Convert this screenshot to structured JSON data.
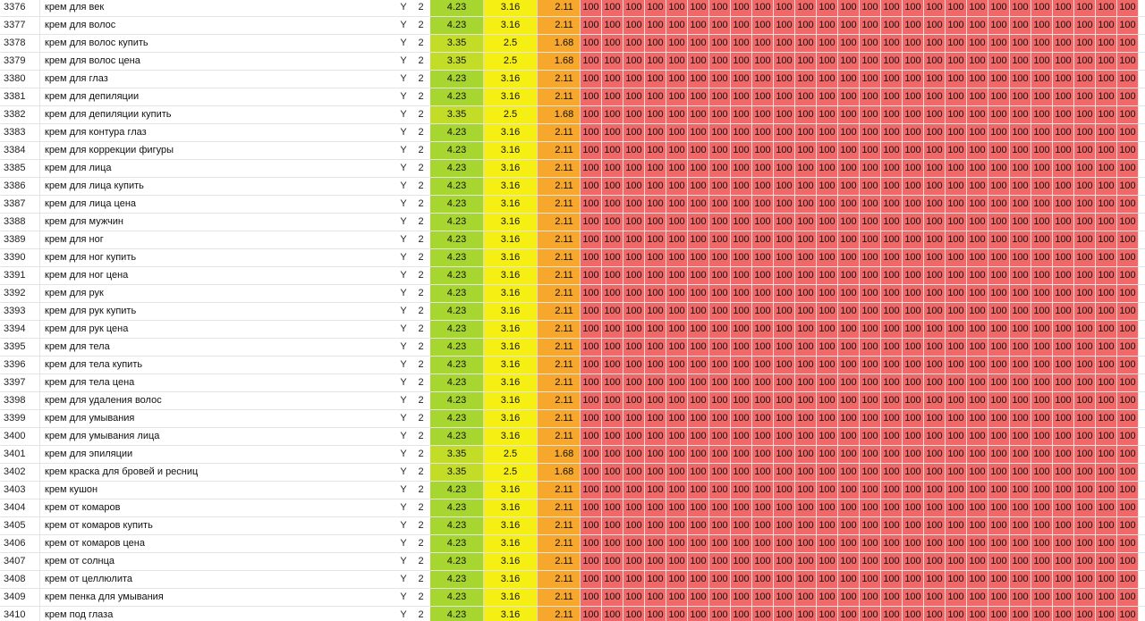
{
  "colors": {
    "green": "#a6d62f",
    "lime": "#c3dc28",
    "yellow": "#f6ef14",
    "orange": "#f7a72b",
    "red": "#f16868"
  },
  "heat_value": "100",
  "heat_columns": 26,
  "rows": [
    {
      "num": "3376",
      "kw": "крем для век",
      "y": "Y",
      "n": "2",
      "v1": "4.23",
      "v2": "3.16",
      "v3": "2.11"
    },
    {
      "num": "3377",
      "kw": "крем для волос",
      "y": "Y",
      "n": "2",
      "v1": "4.23",
      "v2": "3.16",
      "v3": "2.11"
    },
    {
      "num": "3378",
      "kw": "крем для волос купить",
      "y": "Y",
      "n": "2",
      "v1": "3.35",
      "v2": "2.5",
      "v3": "1.68"
    },
    {
      "num": "3379",
      "kw": "крем для волос цена",
      "y": "Y",
      "n": "2",
      "v1": "3.35",
      "v2": "2.5",
      "v3": "1.68"
    },
    {
      "num": "3380",
      "kw": "крем для глаз",
      "y": "Y",
      "n": "2",
      "v1": "4.23",
      "v2": "3.16",
      "v3": "2.11"
    },
    {
      "num": "3381",
      "kw": "крем для депиляции",
      "y": "Y",
      "n": "2",
      "v1": "4.23",
      "v2": "3.16",
      "v3": "2.11"
    },
    {
      "num": "3382",
      "kw": "крем для депиляции купить",
      "y": "Y",
      "n": "2",
      "v1": "3.35",
      "v2": "2.5",
      "v3": "1.68"
    },
    {
      "num": "3383",
      "kw": "крем для контура глаз",
      "y": "Y",
      "n": "2",
      "v1": "4.23",
      "v2": "3.16",
      "v3": "2.11"
    },
    {
      "num": "3384",
      "kw": "крем для коррекции фигуры",
      "y": "Y",
      "n": "2",
      "v1": "4.23",
      "v2": "3.16",
      "v3": "2.11"
    },
    {
      "num": "3385",
      "kw": "крем для лица",
      "y": "Y",
      "n": "2",
      "v1": "4.23",
      "v2": "3.16",
      "v3": "2.11"
    },
    {
      "num": "3386",
      "kw": "крем для лица купить",
      "y": "Y",
      "n": "2",
      "v1": "4.23",
      "v2": "3.16",
      "v3": "2.11"
    },
    {
      "num": "3387",
      "kw": "крем для лица цена",
      "y": "Y",
      "n": "2",
      "v1": "4.23",
      "v2": "3.16",
      "v3": "2.11"
    },
    {
      "num": "3388",
      "kw": "крем для мужчин",
      "y": "Y",
      "n": "2",
      "v1": "4.23",
      "v2": "3.16",
      "v3": "2.11"
    },
    {
      "num": "3389",
      "kw": "крем для ног",
      "y": "Y",
      "n": "2",
      "v1": "4.23",
      "v2": "3.16",
      "v3": "2.11"
    },
    {
      "num": "3390",
      "kw": "крем для ног купить",
      "y": "Y",
      "n": "2",
      "v1": "4.23",
      "v2": "3.16",
      "v3": "2.11"
    },
    {
      "num": "3391",
      "kw": "крем для ног цена",
      "y": "Y",
      "n": "2",
      "v1": "4.23",
      "v2": "3.16",
      "v3": "2.11"
    },
    {
      "num": "3392",
      "kw": "крем для рук",
      "y": "Y",
      "n": "2",
      "v1": "4.23",
      "v2": "3.16",
      "v3": "2.11"
    },
    {
      "num": "3393",
      "kw": "крем для рук купить",
      "y": "Y",
      "n": "2",
      "v1": "4.23",
      "v2": "3.16",
      "v3": "2.11"
    },
    {
      "num": "3394",
      "kw": "крем для рук цена",
      "y": "Y",
      "n": "2",
      "v1": "4.23",
      "v2": "3.16",
      "v3": "2.11"
    },
    {
      "num": "3395",
      "kw": "крем для тела",
      "y": "Y",
      "n": "2",
      "v1": "4.23",
      "v2": "3.16",
      "v3": "2.11"
    },
    {
      "num": "3396",
      "kw": "крем для тела купить",
      "y": "Y",
      "n": "2",
      "v1": "4.23",
      "v2": "3.16",
      "v3": "2.11"
    },
    {
      "num": "3397",
      "kw": "крем для тела цена",
      "y": "Y",
      "n": "2",
      "v1": "4.23",
      "v2": "3.16",
      "v3": "2.11"
    },
    {
      "num": "3398",
      "kw": "крем для удаления волос",
      "y": "Y",
      "n": "2",
      "v1": "4.23",
      "v2": "3.16",
      "v3": "2.11"
    },
    {
      "num": "3399",
      "kw": "крем для умывания",
      "y": "Y",
      "n": "2",
      "v1": "4.23",
      "v2": "3.16",
      "v3": "2.11"
    },
    {
      "num": "3400",
      "kw": "крем для умывания лица",
      "y": "Y",
      "n": "2",
      "v1": "4.23",
      "v2": "3.16",
      "v3": "2.11"
    },
    {
      "num": "3401",
      "kw": "крем для эпиляции",
      "y": "Y",
      "n": "2",
      "v1": "3.35",
      "v2": "2.5",
      "v3": "1.68"
    },
    {
      "num": "3402",
      "kw": "крем краска для бровей и ресниц",
      "y": "Y",
      "n": "2",
      "v1": "3.35",
      "v2": "2.5",
      "v3": "1.68"
    },
    {
      "num": "3403",
      "kw": "крем кушон",
      "y": "Y",
      "n": "2",
      "v1": "4.23",
      "v2": "3.16",
      "v3": "2.11"
    },
    {
      "num": "3404",
      "kw": "крем от комаров",
      "y": "Y",
      "n": "2",
      "v1": "4.23",
      "v2": "3.16",
      "v3": "2.11"
    },
    {
      "num": "3405",
      "kw": "крем от комаров купить",
      "y": "Y",
      "n": "2",
      "v1": "4.23",
      "v2": "3.16",
      "v3": "2.11"
    },
    {
      "num": "3406",
      "kw": "крем от комаров цена",
      "y": "Y",
      "n": "2",
      "v1": "4.23",
      "v2": "3.16",
      "v3": "2.11"
    },
    {
      "num": "3407",
      "kw": "крем от солнца",
      "y": "Y",
      "n": "2",
      "v1": "4.23",
      "v2": "3.16",
      "v3": "2.11"
    },
    {
      "num": "3408",
      "kw": "крем от целлюлита",
      "y": "Y",
      "n": "2",
      "v1": "4.23",
      "v2": "3.16",
      "v3": "2.11"
    },
    {
      "num": "3409",
      "kw": "крем пенка для умывания",
      "y": "Y",
      "n": "2",
      "v1": "4.23",
      "v2": "3.16",
      "v3": "2.11"
    },
    {
      "num": "3410",
      "kw": "крем под глаза",
      "y": "Y",
      "n": "2",
      "v1": "4.23",
      "v2": "3.16",
      "v3": "2.11"
    }
  ]
}
